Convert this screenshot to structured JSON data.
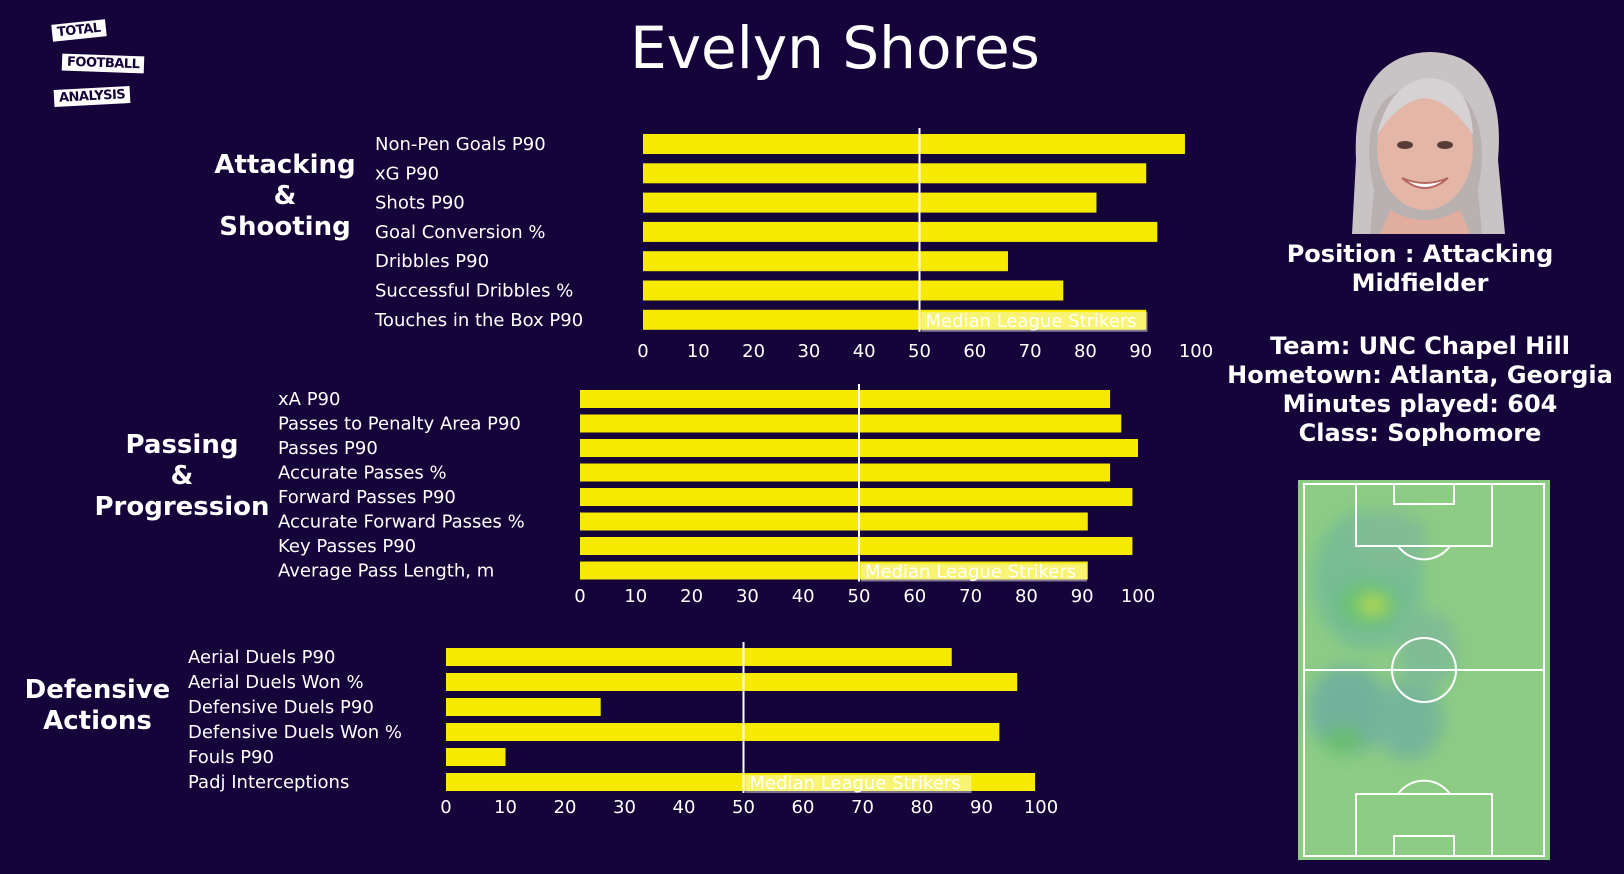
{
  "logo": {
    "line1": "TOTAL",
    "line2": "FOOTBALL",
    "line3": "ANALYSIS"
  },
  "title": "Evelyn Shores",
  "sections": [
    {
      "title_lines": [
        "Attacking",
        "&",
        "Shooting"
      ],
      "categories": [
        "Non-Pen Goals P90",
        "xG P90",
        "Shots P90",
        "Goal Conversion %",
        "Dribbles P90",
        "Successful Dribbles %",
        "Touches in the Box P90"
      ],
      "values": [
        98,
        91,
        82,
        93,
        66,
        76,
        91
      ],
      "ticks": [
        0,
        10,
        20,
        30,
        40,
        50,
        60,
        70,
        80,
        90,
        100
      ],
      "median": 50,
      "median_label": "Median League Strikers",
      "xlim": [
        0,
        100
      ]
    },
    {
      "title_lines": [
        "Passing",
        "&",
        "Progression"
      ],
      "categories": [
        "xA P90",
        "Passes to Penalty Area P90",
        "Passes P90",
        "Accurate Passes %",
        "Forward Passes P90",
        "Accurate Forward Passes %",
        "Key Passes P90",
        "Average Pass Length, m"
      ],
      "values": [
        95,
        97,
        100,
        95,
        99,
        91,
        99,
        91
      ],
      "ticks": [
        0,
        10,
        20,
        30,
        40,
        50,
        60,
        70,
        80,
        90,
        100
      ],
      "median": 50,
      "median_label": "Median League Strikers",
      "xlim": [
        0,
        100
      ]
    },
    {
      "title_lines": [
        "Defensive",
        "Actions"
      ],
      "categories": [
        "Aerial Duels P90",
        "Aerial Duels Won %",
        "Defensive Duels P90",
        "Defensive Duels Won %",
        "Fouls P90",
        "Padj Interceptions"
      ],
      "values": [
        85,
        96,
        26,
        93,
        10,
        99
      ],
      "ticks": [
        0,
        10,
        20,
        30,
        40,
        50,
        60,
        70,
        80,
        90,
        100
      ],
      "median": 50,
      "median_label": "Median League Strikers",
      "xlim": [
        0,
        100
      ]
    }
  ],
  "chart_data": [
    {
      "type": "bar",
      "orientation": "horizontal",
      "title": "Attacking & Shooting",
      "categories": [
        "Non-Pen Goals P90",
        "xG P90",
        "Shots P90",
        "Goal Conversion %",
        "Dribbles P90",
        "Successful Dribbles %",
        "Touches in the Box P90"
      ],
      "values": [
        98,
        91,
        82,
        93,
        66,
        76,
        91
      ],
      "xlim": [
        0,
        100
      ],
      "reference_line": {
        "x": 50,
        "label": "Median League Strikers"
      }
    },
    {
      "type": "bar",
      "orientation": "horizontal",
      "title": "Passing & Progression",
      "categories": [
        "xA P90",
        "Passes to Penalty Area P90",
        "Passes P90",
        "Accurate Passes %",
        "Forward Passes P90",
        "Accurate Forward Passes %",
        "Key Passes P90",
        "Average Pass Length, m"
      ],
      "values": [
        95,
        97,
        100,
        95,
        99,
        91,
        99,
        91
      ],
      "xlim": [
        0,
        100
      ],
      "reference_line": {
        "x": 50,
        "label": "Median League Strikers"
      }
    },
    {
      "type": "bar",
      "orientation": "horizontal",
      "title": "Defensive Actions",
      "categories": [
        "Aerial Duels P90",
        "Aerial Duels Won %",
        "Defensive Duels P90",
        "Defensive Duels Won %",
        "Fouls P90",
        "Padj Interceptions"
      ],
      "values": [
        85,
        96,
        26,
        93,
        10,
        99
      ],
      "xlim": [
        0,
        100
      ],
      "reference_line": {
        "x": 50,
        "label": "Median League Strikers"
      }
    }
  ],
  "player": {
    "position_line1": "Position : Attacking",
    "position_line2": "Midfielder",
    "team": "Team: UNC Chapel Hill",
    "hometown": "Hometown: Atlanta, Georgia",
    "minutes": "Minutes played: 604",
    "class": "Class: Sophomore"
  },
  "colors": {
    "background": "#14043a",
    "bar": "#f5ea00",
    "median_line": "#ffffff",
    "pitch": "#88c77e"
  }
}
